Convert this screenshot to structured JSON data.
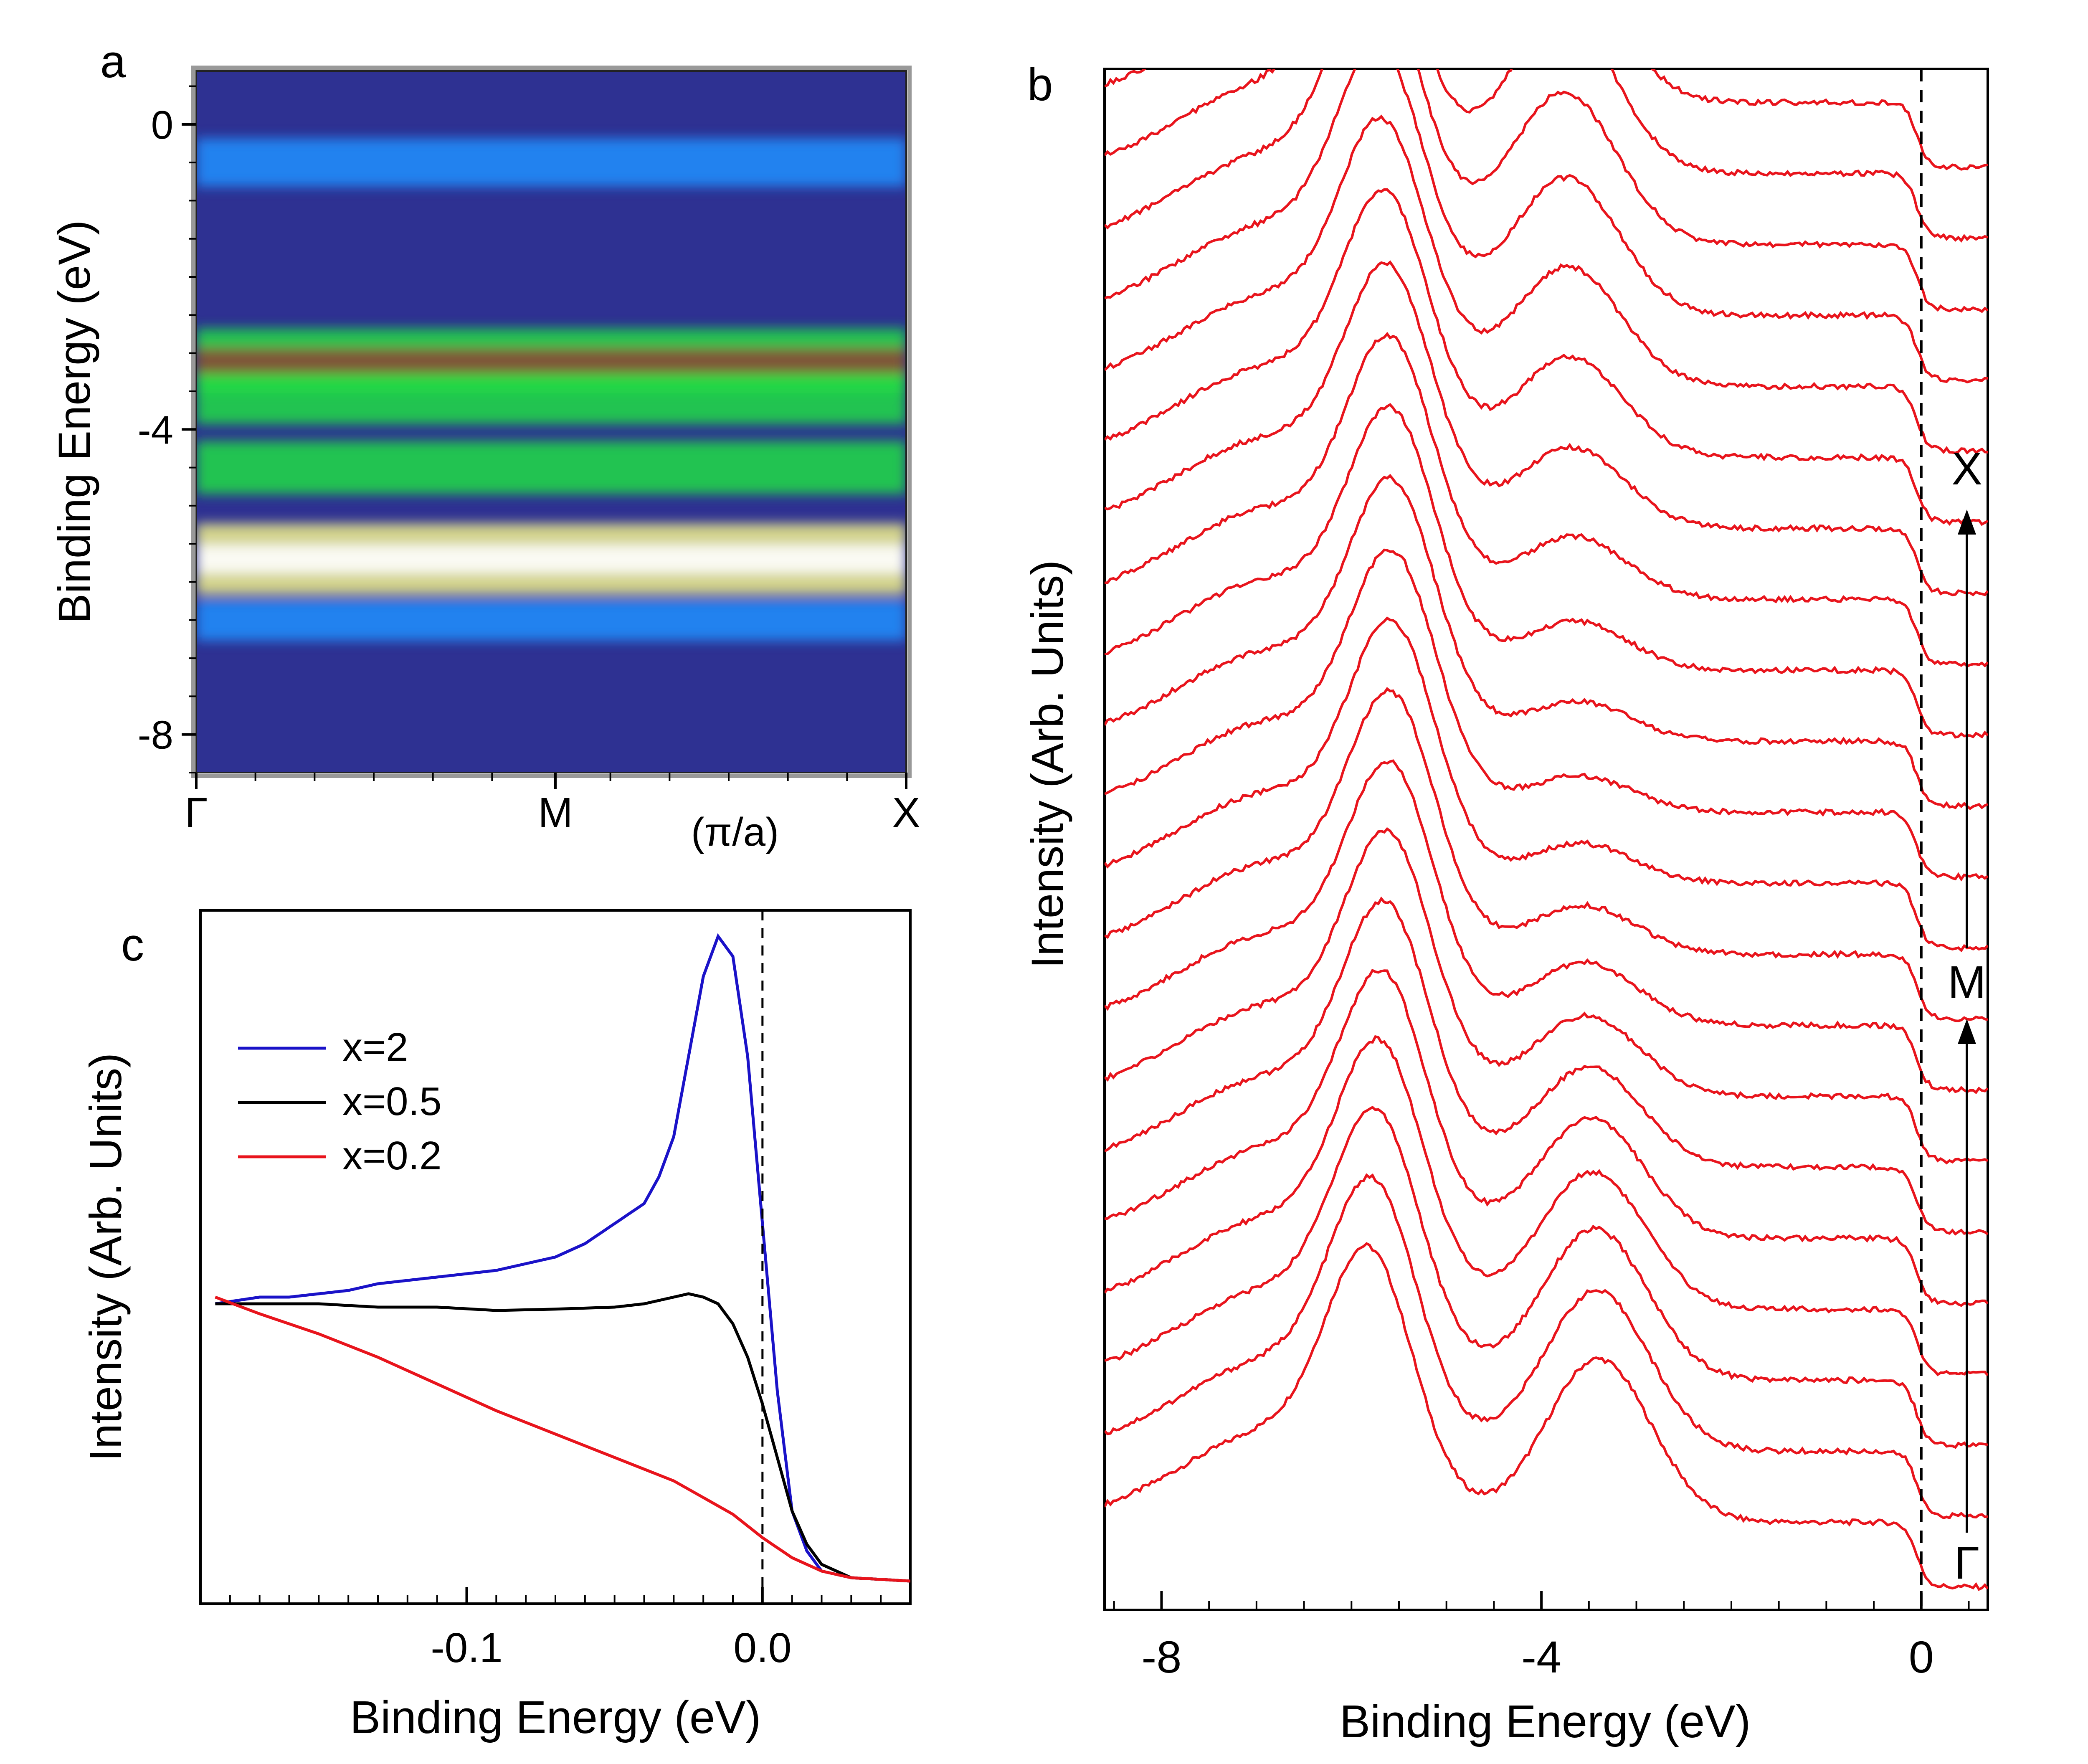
{
  "chart_data": [
    {
      "panel": "a",
      "type": "heatmap",
      "panel_label": "a",
      "ylabel": "Binding Energy (eV)",
      "xlabel": "(π/a)",
      "x_ticks": [
        "Γ",
        "M",
        "X"
      ],
      "y_ticks": [
        0,
        -4,
        -8
      ],
      "ylim": [
        0.7,
        -8.5
      ],
      "colormap": [
        "#2e3192",
        "#1e90ff",
        "#22dd44",
        "#f0f08a",
        "#8b4a36",
        "#ffffff"
      ],
      "bands": [
        {
          "energy": -0.5,
          "intensity": 0.45
        },
        {
          "energy": -3.1,
          "intensity": 0.8
        },
        {
          "energy": -3.6,
          "intensity": 0.5
        },
        {
          "energy": -4.5,
          "intensity": 0.55
        },
        {
          "energy": -5.7,
          "intensity": 0.95
        },
        {
          "energy": -6.5,
          "intensity": 0.3
        }
      ]
    },
    {
      "panel": "b",
      "type": "line",
      "panel_label": "b",
      "xlabel": "Binding Energy (eV)",
      "ylabel": "Intensity (Arb. Units)",
      "xlim": [
        -8.6,
        0.7
      ],
      "x_ticks": [
        -8,
        -4,
        0
      ],
      "fermi_line": 0,
      "line_color": "#e8141c",
      "n_curves": 21,
      "k_labels": [
        {
          "label": "X",
          "curve_index": 20
        },
        {
          "label": "M",
          "curve_index": 10
        },
        {
          "label": "Γ",
          "curve_index": 0
        }
      ],
      "peak_positions": [
        -5.8,
        -3.5
      ]
    },
    {
      "panel": "c",
      "type": "line",
      "panel_label": "c",
      "xlabel": "Binding Energy (eV)",
      "ylabel": "Intensity (Arb. Units)",
      "xlim": [
        -0.19,
        0.05
      ],
      "x_ticks": [
        -0.1,
        0.0
      ],
      "x_tick_labels": [
        "-0.1",
        "0.0"
      ],
      "fermi_line": 0,
      "legend_position": "upper-left",
      "series": [
        {
          "name": "x=2",
          "color": "#1a12c8",
          "x": [
            -0.185,
            -0.17,
            -0.16,
            -0.15,
            -0.14,
            -0.13,
            -0.12,
            -0.11,
            -0.1,
            -0.09,
            -0.08,
            -0.07,
            -0.06,
            -0.05,
            -0.04,
            -0.035,
            -0.03,
            -0.025,
            -0.02,
            -0.015,
            -0.01,
            -0.005,
            0.0,
            0.005,
            0.01,
            0.015,
            0.02,
            0.03,
            0.05
          ],
          "y": [
            0.43,
            0.44,
            0.44,
            0.445,
            0.45,
            0.46,
            0.465,
            0.47,
            0.475,
            0.48,
            0.49,
            0.5,
            0.52,
            0.55,
            0.58,
            0.62,
            0.68,
            0.8,
            0.92,
            0.98,
            0.95,
            0.8,
            0.55,
            0.3,
            0.12,
            0.06,
            0.03,
            0.02,
            0.015
          ]
        },
        {
          "name": "x=0.5",
          "color": "#000000",
          "x": [
            -0.185,
            -0.17,
            -0.15,
            -0.13,
            -0.11,
            -0.09,
            -0.07,
            -0.05,
            -0.04,
            -0.03,
            -0.025,
            -0.02,
            -0.015,
            -0.01,
            -0.005,
            0.0,
            0.005,
            0.01,
            0.015,
            0.02,
            0.03,
            0.05
          ],
          "y": [
            0.43,
            0.43,
            0.43,
            0.425,
            0.425,
            0.42,
            0.422,
            0.425,
            0.43,
            0.44,
            0.445,
            0.44,
            0.43,
            0.4,
            0.35,
            0.28,
            0.2,
            0.12,
            0.07,
            0.04,
            0.02,
            0.015
          ]
        },
        {
          "name": "x=0.2",
          "color": "#e8141c",
          "x": [
            -0.185,
            -0.17,
            -0.15,
            -0.13,
            -0.11,
            -0.09,
            -0.07,
            -0.05,
            -0.03,
            -0.02,
            -0.01,
            0.0,
            0.01,
            0.02,
            0.03,
            0.05
          ],
          "y": [
            0.44,
            0.415,
            0.385,
            0.35,
            0.31,
            0.27,
            0.235,
            0.2,
            0.165,
            0.14,
            0.115,
            0.08,
            0.05,
            0.03,
            0.02,
            0.015
          ]
        }
      ]
    }
  ]
}
